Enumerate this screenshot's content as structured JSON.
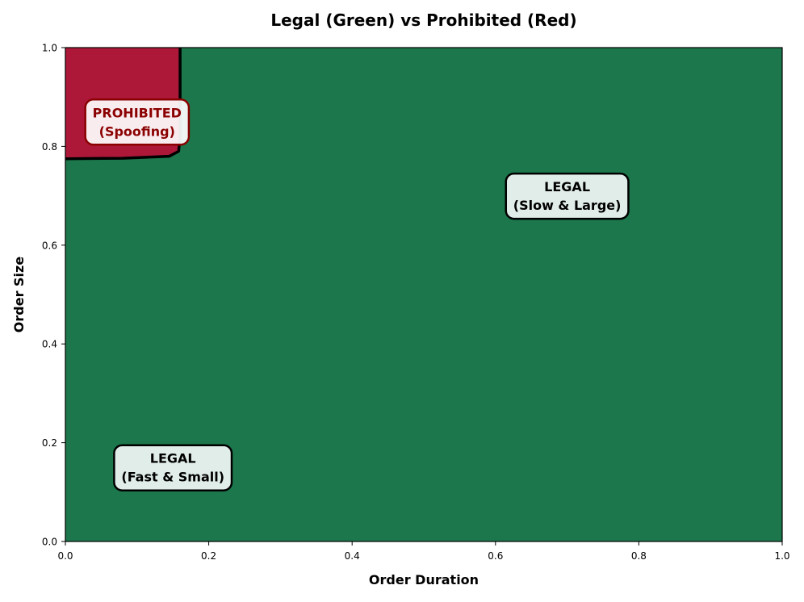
{
  "chart_data": {
    "type": "heatmap",
    "title": "Legal (Green) vs Prohibited (Red)",
    "xlabel": "Order Duration",
    "ylabel": "Order Size",
    "xlim": [
      0.0,
      1.0
    ],
    "ylim": [
      0.0,
      1.0
    ],
    "x_ticks": [
      "0.0",
      "0.2",
      "0.4",
      "0.6",
      "0.8",
      "1.0"
    ],
    "y_ticks": [
      "0.0",
      "0.2",
      "0.4",
      "0.6",
      "0.8",
      "1.0"
    ],
    "grid": false,
    "colors": {
      "legal": "#1c774c",
      "prohibited": "#ad1839",
      "boundary": "#000000",
      "prohibited_text": "#8b0000"
    },
    "regions": [
      {
        "class": "legal",
        "label": "Legal"
      },
      {
        "class": "prohibited",
        "label": "Prohibited",
        "x_range": [
          0.0,
          0.16
        ],
        "y_range": [
          0.775,
          1.0
        ]
      }
    ],
    "boundary": [
      {
        "x": 0.0,
        "y": 0.775
      },
      {
        "x": 0.08,
        "y": 0.776
      },
      {
        "x": 0.145,
        "y": 0.78
      },
      {
        "x": 0.158,
        "y": 0.79
      },
      {
        "x": 0.16,
        "y": 0.82
      },
      {
        "x": 0.16,
        "y": 1.0
      }
    ],
    "annotations": [
      {
        "lines": [
          "PROHIBITED",
          "(Spoofing)"
        ],
        "x": 0.1,
        "y": 0.85,
        "style": "prohibited"
      },
      {
        "lines": [
          "LEGAL",
          "(Slow & Large)"
        ],
        "x": 0.7,
        "y": 0.7,
        "style": "legal"
      },
      {
        "lines": [
          "LEGAL",
          "(Fast & Small)"
        ],
        "x": 0.15,
        "y": 0.15,
        "style": "legal"
      }
    ]
  }
}
